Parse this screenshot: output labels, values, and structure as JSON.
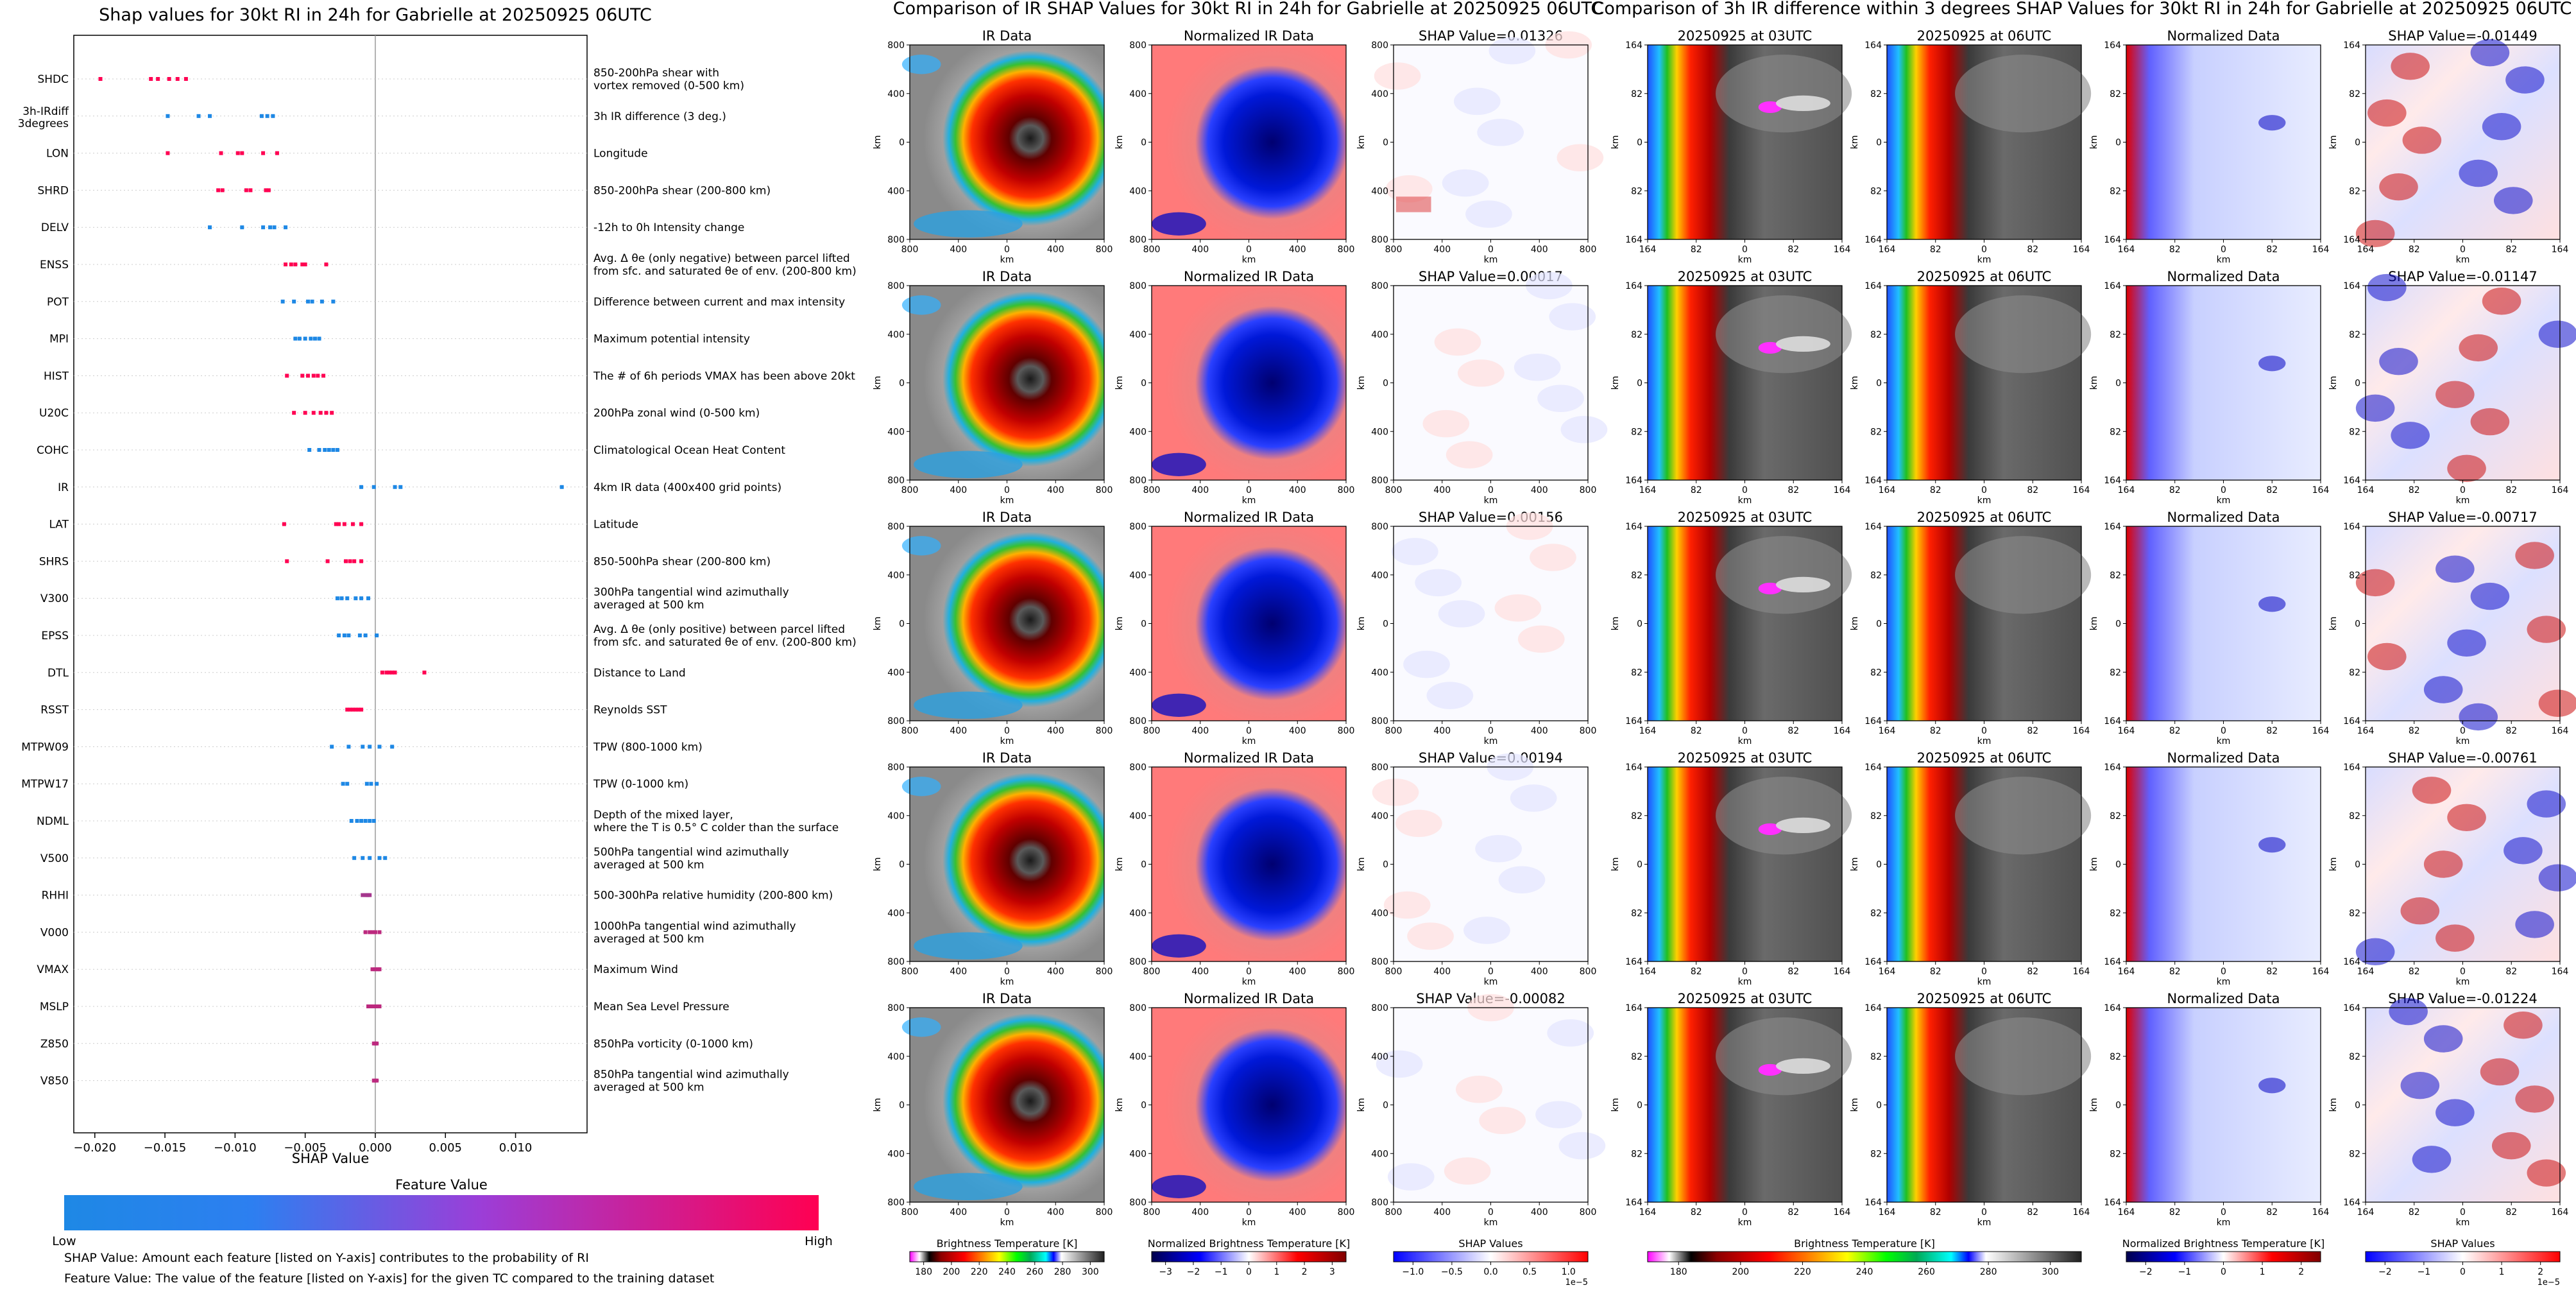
{
  "left_panel": {
    "title": "Shap values for 30kt RI in 24h for Gabrielle at 20250925 06UTC",
    "xlabel": "SHAP Value",
    "xticks": [
      "−0.020",
      "−0.015",
      "−0.010",
      "−0.005",
      "0.000",
      "0.005",
      "0.010"
    ],
    "colorbar_title": "Feature Value",
    "colorbar_low": "Low",
    "colorbar_high": "High",
    "note_1": "SHAP Value: Amount each feature [listed on Y-axis] contributes to the probability of RI",
    "note_2": "Feature Value: The value of the feature [listed on Y-axis] for the given TC compared to the training dataset"
  },
  "colors": {
    "low": "#1e88e5",
    "high": "#ff0052",
    "ir_warm": "#8b0000",
    "norm_neg": "#0000cc",
    "norm_pos": "#ff6666"
  },
  "chart_data": [
    {
      "type": "scatter",
      "title": "Shap values for 30kt RI in 24h for Gabrielle at 20250925 06UTC",
      "xlabel": "SHAP Value",
      "xlim": [
        -0.0215,
        0.0151
      ],
      "features": [
        {
          "code": "SHDC",
          "desc": [
            "850-200hPa shear with",
            "vortex removed (0-500 km)"
          ],
          "points": [
            [
              -0.0196,
              1
            ],
            [
              -0.016,
              1
            ],
            [
              -0.0155,
              1
            ],
            [
              -0.0147,
              1
            ],
            [
              -0.0141,
              1
            ],
            [
              -0.0135,
              1
            ]
          ]
        },
        {
          "code": "3h-IRdiff 3degrees",
          "desc": [
            "3h IR difference (3 deg.)"
          ],
          "points": [
            [
              -0.0148,
              0
            ],
            [
              -0.0126,
              0
            ],
            [
              -0.0118,
              0
            ],
            [
              -0.0081,
              0
            ],
            [
              -0.0077,
              0
            ],
            [
              -0.0073,
              0
            ]
          ]
        },
        {
          "code": "LON",
          "desc": [
            "Longitude"
          ],
          "points": [
            [
              -0.0148,
              1
            ],
            [
              -0.011,
              1
            ],
            [
              -0.0098,
              1
            ],
            [
              -0.0095,
              1
            ],
            [
              -0.008,
              1
            ],
            [
              -0.007,
              1
            ]
          ]
        },
        {
          "code": "SHRD",
          "desc": [
            "850-200hPa shear (200-800 km)"
          ],
          "points": [
            [
              -0.0112,
              1
            ],
            [
              -0.0109,
              1
            ],
            [
              -0.0092,
              1
            ],
            [
              -0.0089,
              1
            ],
            [
              -0.0078,
              1
            ],
            [
              -0.0076,
              1
            ]
          ]
        },
        {
          "code": "DELV",
          "desc": [
            "-12h to 0h Intensity change"
          ],
          "points": [
            [
              -0.0118,
              0
            ],
            [
              -0.0095,
              0
            ],
            [
              -0.008,
              0
            ],
            [
              -0.0075,
              0
            ],
            [
              -0.0072,
              0
            ],
            [
              -0.0064,
              0
            ]
          ]
        },
        {
          "code": "ENSS",
          "desc": [
            "Avg. Δ θe (only negative) between parcel lifted",
            "from sfc. and saturated θe of env. (200-800 km)"
          ],
          "points": [
            [
              -0.0064,
              1
            ],
            [
              -0.006,
              1
            ],
            [
              -0.0057,
              1
            ],
            [
              -0.0052,
              1
            ],
            [
              -0.005,
              1
            ],
            [
              -0.0035,
              1
            ]
          ]
        },
        {
          "code": "POT",
          "desc": [
            "Difference between current and max intensity"
          ],
          "points": [
            [
              -0.0066,
              0
            ],
            [
              -0.0058,
              0
            ],
            [
              -0.0048,
              0
            ],
            [
              -0.0045,
              0
            ],
            [
              -0.0038,
              0
            ],
            [
              -0.003,
              0
            ]
          ]
        },
        {
          "code": "MPI",
          "desc": [
            "Maximum potential intensity"
          ],
          "points": [
            [
              -0.0057,
              0
            ],
            [
              -0.0054,
              0
            ],
            [
              -0.005,
              0
            ],
            [
              -0.0046,
              0
            ],
            [
              -0.0043,
              0
            ],
            [
              -0.004,
              0
            ]
          ]
        },
        {
          "code": "HIST",
          "desc": [
            "The # of 6h periods VMAX has been above 20kt"
          ],
          "points": [
            [
              -0.0063,
              1
            ],
            [
              -0.0052,
              1
            ],
            [
              -0.0048,
              1
            ],
            [
              -0.0044,
              1
            ],
            [
              -0.0041,
              1
            ],
            [
              -0.0037,
              1
            ]
          ]
        },
        {
          "code": "U20C",
          "desc": [
            "200hPa zonal wind (0-500 km)"
          ],
          "points": [
            [
              -0.0058,
              1
            ],
            [
              -0.005,
              1
            ],
            [
              -0.0044,
              1
            ],
            [
              -0.0039,
              1
            ],
            [
              -0.0035,
              1
            ],
            [
              -0.0031,
              1
            ]
          ]
        },
        {
          "code": "COHC",
          "desc": [
            "Climatological Ocean Heat Content"
          ],
          "points": [
            [
              -0.0047,
              0
            ],
            [
              -0.004,
              0
            ],
            [
              -0.0036,
              0
            ],
            [
              -0.0033,
              0
            ],
            [
              -0.003,
              0
            ],
            [
              -0.0027,
              0
            ]
          ]
        },
        {
          "code": "IR",
          "desc": [
            "4km IR data (400x400 grid points)"
          ],
          "points": [
            [
              -0.001,
              0
            ],
            [
              -0.0001,
              0
            ],
            [
              0.0014,
              0
            ],
            [
              0.0018,
              0
            ],
            [
              0.0133,
              0
            ]
          ]
        },
        {
          "code": "LAT",
          "desc": [
            "Latitude"
          ],
          "points": [
            [
              -0.0065,
              1
            ],
            [
              -0.0028,
              1
            ],
            [
              -0.0026,
              1
            ],
            [
              -0.0022,
              1
            ],
            [
              -0.0016,
              1
            ],
            [
              -0.001,
              1
            ]
          ]
        },
        {
          "code": "SHRS",
          "desc": [
            "850-500hPa shear (200-800 km)"
          ],
          "points": [
            [
              -0.0063,
              1
            ],
            [
              -0.0034,
              1
            ],
            [
              -0.0021,
              1
            ],
            [
              -0.0018,
              1
            ],
            [
              -0.0015,
              1
            ],
            [
              -0.001,
              1
            ]
          ]
        },
        {
          "code": "V300",
          "desc": [
            "300hPa tangential wind azimuthally",
            "averaged at 500 km"
          ],
          "points": [
            [
              -0.0027,
              0
            ],
            [
              -0.0024,
              0
            ],
            [
              -0.002,
              0
            ],
            [
              -0.0014,
              0
            ],
            [
              -0.001,
              0
            ],
            [
              -0.0005,
              0
            ]
          ]
        },
        {
          "code": "EPSS",
          "desc": [
            "Avg. Δ θe (only positive) between parcel lifted",
            "from sfc. and saturated θe of env. (200-800 km)"
          ],
          "points": [
            [
              -0.0026,
              0
            ],
            [
              -0.0022,
              0
            ],
            [
              -0.0019,
              0
            ],
            [
              -0.0011,
              0
            ],
            [
              -0.0007,
              0
            ],
            [
              0.0001,
              0
            ]
          ]
        },
        {
          "code": "DTL",
          "desc": [
            "Distance to Land"
          ],
          "points": [
            [
              0.0005,
              1
            ],
            [
              0.0008,
              1
            ],
            [
              0.001,
              1
            ],
            [
              0.0012,
              1
            ],
            [
              0.0014,
              1
            ],
            [
              0.0035,
              1
            ]
          ]
        },
        {
          "code": "RSST",
          "desc": [
            "Reynolds SST"
          ],
          "points": [
            [
              -0.002,
              1
            ],
            [
              -0.0018,
              1
            ],
            [
              -0.0016,
              1
            ],
            [
              -0.0014,
              1
            ],
            [
              -0.0012,
              1
            ],
            [
              -0.001,
              1
            ]
          ]
        },
        {
          "code": "MTPW09",
          "desc": [
            "TPW (800-1000 km)"
          ],
          "points": [
            [
              -0.0031,
              0
            ],
            [
              -0.0019,
              0
            ],
            [
              -0.0009,
              0
            ],
            [
              -0.0004,
              0
            ],
            [
              0.0003,
              0
            ],
            [
              0.0012,
              0
            ]
          ]
        },
        {
          "code": "MTPW17",
          "desc": [
            "TPW (0-1000 km)"
          ],
          "points": [
            [
              -0.0023,
              0
            ],
            [
              -0.002,
              0
            ],
            [
              -0.0006,
              0
            ],
            [
              -0.0003,
              0
            ],
            [
              0.0001,
              0
            ]
          ]
        },
        {
          "code": "NDML",
          "desc": [
            "Depth of the mixed layer,",
            "where the T is 0.5° C colder than the surface"
          ],
          "points": [
            [
              -0.0017,
              0
            ],
            [
              -0.0013,
              0
            ],
            [
              -0.001,
              0
            ],
            [
              -0.0007,
              0
            ],
            [
              -0.0004,
              0
            ],
            [
              -0.0001,
              0
            ]
          ]
        },
        {
          "code": "V500",
          "desc": [
            "500hPa tangential wind azimuthally",
            "averaged at 500 km"
          ],
          "points": [
            [
              -0.0015,
              0
            ],
            [
              -0.0009,
              0
            ],
            [
              -0.0004,
              0
            ],
            [
              0.0003,
              0
            ],
            [
              0.0007,
              0
            ]
          ]
        },
        {
          "code": "RHHI",
          "desc": [
            "500-300hPa relative humidity (200-800 km)"
          ],
          "points": [
            [
              -0.0009,
              0.6
            ],
            [
              -0.0007,
              0.6
            ],
            [
              -0.0006,
              0.6
            ],
            [
              -0.0005,
              0.6
            ],
            [
              -0.0004,
              0.6
            ]
          ]
        },
        {
          "code": "V000",
          "desc": [
            "1000hPa tangential wind azimuthally",
            "averaged at 500 km"
          ],
          "points": [
            [
              -0.0007,
              0.7
            ],
            [
              -0.0004,
              0.7
            ],
            [
              -0.0002,
              0.7
            ],
            [
              0.0,
              0.7
            ],
            [
              0.0003,
              0.7
            ]
          ]
        },
        {
          "code": "VMAX",
          "desc": [
            "Maximum Wind"
          ],
          "points": [
            [
              -0.0002,
              0.7
            ],
            [
              0.0,
              0.7
            ],
            [
              0.0002,
              0.7
            ],
            [
              0.0003,
              0.7
            ]
          ]
        },
        {
          "code": "MSLP",
          "desc": [
            "Mean Sea Level Pressure"
          ],
          "points": [
            [
              -0.0005,
              0.7
            ],
            [
              -0.0003,
              0.7
            ],
            [
              -0.0001,
              0.7
            ],
            [
              0.0001,
              0.7
            ],
            [
              0.0003,
              0.7
            ]
          ]
        },
        {
          "code": "Z850",
          "desc": [
            "850hPa vorticity (0-1000 km)"
          ],
          "points": [
            [
              -0.0001,
              0.7
            ],
            [
              0.0,
              0.7
            ],
            [
              0.0001,
              0.7
            ]
          ]
        },
        {
          "code": "V850",
          "desc": [
            "850hPa tangential wind azimuthally",
            "averaged at 500 km"
          ],
          "points": [
            [
              -0.0001,
              0.7
            ],
            [
              0.0,
              0.7
            ],
            [
              0.0001,
              0.7
            ]
          ]
        }
      ]
    },
    {
      "type": "heatmap",
      "title": "Comparison of IR SHAP Values for 30kt RI in 24h for Gabrielle at 20250925 06UTC",
      "columns": [
        "IR Data",
        "Normalized IR Data"
      ],
      "shap_values": [
        "SHAP Value=0.01326",
        "SHAP Value=0.00017",
        "SHAP Value=0.00156",
        "SHAP Value=0.00194",
        "SHAP Value=-0.00082"
      ],
      "xticks": [
        "800",
        "400",
        "0",
        "400",
        "800"
      ],
      "yticks": [
        "800",
        "400",
        "0",
        "400",
        "800"
      ],
      "axis_label": "km",
      "colorbars": [
        {
          "label": "Brightness Temperature [K]",
          "ticks": [
            "180",
            "200",
            "220",
            "240",
            "260",
            "280",
            "300"
          ]
        },
        {
          "label": "Normalized Brightness Temperature [K]",
          "ticks": [
            "−3",
            "−2",
            "−1",
            "0",
            "1",
            "2",
            "3"
          ]
        },
        {
          "label": "SHAP Values",
          "ticks": [
            "−1.0",
            "−0.5",
            "0.0",
            "0.5",
            "1.0"
          ],
          "exponent": "1e−5"
        }
      ]
    },
    {
      "type": "heatmap",
      "title": "Comparison of 3h IR difference within 3 degrees SHAP Values for 30kt RI in 24h for Gabrielle at 20250925 06UTC",
      "columns": [
        "20250925 at 03UTC",
        "20250925 at 06UTC",
        "Normalized Data"
      ],
      "shap_values": [
        "SHAP Value=-0.01449",
        "SHAP Value=-0.01147",
        "SHAP Value=-0.00717",
        "SHAP Value=-0.00761",
        "SHAP Value=-0.01224"
      ],
      "xticks": [
        "164",
        "82",
        "0",
        "82",
        "164"
      ],
      "yticks": [
        "164",
        "82",
        "0",
        "82",
        "164"
      ],
      "axis_label": "km",
      "colorbars": [
        {
          "label": "Brightness Temperature [K]",
          "ticks": [
            "180",
            "200",
            "220",
            "240",
            "260",
            "280",
            "300"
          ]
        },
        {
          "label": "Normalized Brightness Temperature [K]",
          "ticks": [
            "−2",
            "−1",
            "0",
            "1",
            "2"
          ]
        },
        {
          "label": "SHAP Values",
          "ticks": [
            "−2",
            "−1",
            "0",
            "1",
            "2"
          ],
          "exponent": "1e−5"
        }
      ]
    }
  ]
}
